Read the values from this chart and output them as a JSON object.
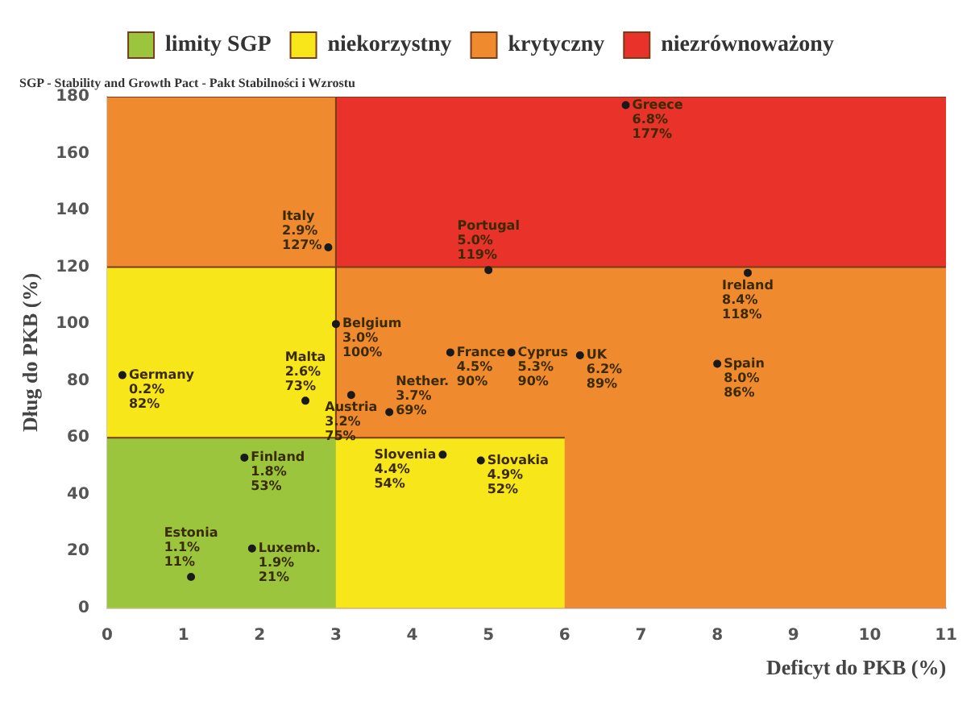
{
  "chart_data": {
    "type": "scatter",
    "xlabel": "Deficyt do PKB (%)",
    "ylabel": "Dług do PKB (%)",
    "xlim": [
      0,
      11
    ],
    "ylim": [
      0,
      180
    ],
    "xticks": [
      0,
      1,
      2,
      3,
      4,
      5,
      6,
      7,
      8,
      9,
      10,
      11
    ],
    "yticks": [
      0,
      20,
      40,
      60,
      80,
      100,
      120,
      140,
      160,
      180
    ],
    "legend": "top",
    "grid": false,
    "series": [
      {
        "type": "area",
        "name": "niezrównoważony",
        "color": "#e8322a",
        "x": [
          3,
          11
        ],
        "values": [
          180,
          180
        ]
      },
      {
        "type": "area",
        "name": "krytyczny",
        "color": "#f08a2e",
        "x": [
          0,
          3,
          3,
          11
        ],
        "values": [
          180,
          180,
          120,
          120
        ]
      },
      {
        "type": "area",
        "name": "niekorzystny",
        "color": "#f7e619",
        "x": [
          0,
          3,
          3,
          6
        ],
        "values": [
          120,
          120,
          60,
          60
        ]
      },
      {
        "type": "area",
        "name": "limity SGP",
        "color": "#9bc53d",
        "x": [
          0,
          3
        ],
        "values": [
          60,
          60
        ]
      },
      {
        "color": "#1a1a1a",
        "x": [
          6.8,
          2.9,
          3.0,
          0.2,
          2.6,
          4.5,
          5.0,
          3.2,
          3.7,
          5.3,
          6.2,
          8.4,
          8.0,
          1.8,
          4.4,
          4.9,
          1.1,
          1.9
        ],
        "values": [
          177,
          127,
          100,
          82,
          73,
          90,
          119,
          75,
          69,
          90,
          89,
          118,
          86,
          53,
          54,
          52,
          11,
          21
        ]
      }
    ],
    "annotations": [
      "SGP - Stability and Growth Pact - Pakt Stabilności i Wzrostu",
      {
        "text": "Greece\n6.8%\n177%",
        "x": 6.8,
        "y": 177
      },
      {
        "text": "Italy\n2.9%\n127%",
        "x": 2.9,
        "y": 127
      },
      {
        "text": "Belgium\n3.0%\n100%",
        "x": 3.0,
        "y": 100
      },
      {
        "text": "Germany\n0.2%\n82%",
        "x": 0.2,
        "y": 82
      },
      {
        "text": "Malta\n2.6%\n73%",
        "x": 2.6,
        "y": 73
      },
      {
        "text": "France\n4.5%\n90%",
        "x": 4.5,
        "y": 90
      },
      {
        "text": "Portugal\n5.0%\n119%",
        "x": 5.0,
        "y": 119
      },
      {
        "text": "Austria\n3.2%\n75%",
        "x": 3.2,
        "y": 75
      },
      {
        "text": "Nether.\n3.7%\n69%",
        "x": 3.7,
        "y": 69
      },
      {
        "text": "Cyprus\n5.3%\n90%",
        "x": 5.3,
        "y": 90
      },
      {
        "text": "UK\n6.2%\n89%",
        "x": 6.2,
        "y": 89
      },
      {
        "text": "Ireland\n8.4%\n118%",
        "x": 8.4,
        "y": 118
      },
      {
        "text": "Spain\n8.0%\n86%",
        "x": 8.0,
        "y": 86
      },
      {
        "text": "Finland\n1.8%\n53%",
        "x": 1.8,
        "y": 53
      },
      {
        "text": "Slovenia\n4.4%\n54%",
        "x": 4.4,
        "y": 54
      },
      {
        "text": "Slovakia\n4.9%\n52%",
        "x": 4.9,
        "y": 52
      },
      {
        "text": "Estonia\n1.1%\n11%",
        "x": 1.1,
        "y": 11
      },
      {
        "text": "Luxemb.\n1.9%\n21%",
        "x": 1.9,
        "y": 21
      }
    ]
  }
}
